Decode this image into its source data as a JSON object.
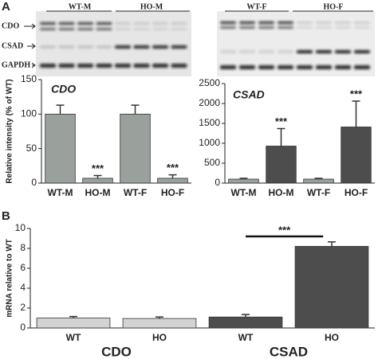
{
  "panel_labels": [
    "A",
    "B"
  ],
  "blot": {
    "rows": [
      "CDO",
      "CSAD",
      "GAPDH"
    ],
    "left_groups": [
      "WT-M",
      "HO-M"
    ],
    "right_groups": [
      "WT-F",
      "HO-F"
    ]
  },
  "chart_data": [
    {
      "type": "bar",
      "title": "CDO",
      "y_label": "Relative intensity (% of WT)",
      "categories": [
        "WT-M",
        "HO-M",
        "WT-F",
        "HO-F"
      ],
      "values": [
        100,
        7,
        100,
        7
      ],
      "errors": [
        13,
        4,
        13,
        5
      ],
      "colors": [
        "#9aa09c",
        "#9aa09c",
        "#9aa09c",
        "#9aa09c"
      ],
      "value_annotations": [
        null,
        "***",
        null,
        "***"
      ],
      "ylim": [
        0,
        150
      ],
      "yticks": [
        0,
        50,
        100,
        150
      ]
    },
    {
      "type": "bar",
      "title": "CSAD",
      "categories": [
        "WT-M",
        "HO-M",
        "WT-F",
        "HO-F"
      ],
      "values": [
        100,
        930,
        100,
        1410
      ],
      "errors": [
        20,
        440,
        20,
        650
      ],
      "colors": [
        "#9aa09c",
        "#4d4d4d",
        "#9aa09c",
        "#4d4d4d"
      ],
      "value_annotations": [
        null,
        "***",
        null,
        "***"
      ],
      "ylim": [
        0,
        2500
      ],
      "yticks": [
        0,
        500,
        1000,
        1500,
        2000,
        2500
      ]
    },
    {
      "type": "bar",
      "y_label": "mRNA relative to WT",
      "categories": [
        "WT",
        "HO",
        "WT",
        "HO"
      ],
      "groups": [
        "CDO",
        "CSAD"
      ],
      "values": [
        1.0,
        0.95,
        1.1,
        8.2
      ],
      "errors": [
        0.15,
        0.15,
        0.25,
        0.45
      ],
      "colors": [
        "#d3d3d3",
        "#d3d3d3",
        "#4d4d4d",
        "#4d4d4d"
      ],
      "annotation": "***",
      "ylim": [
        0,
        10
      ],
      "yticks": [
        0,
        2,
        4,
        6,
        8,
        10
      ]
    }
  ]
}
